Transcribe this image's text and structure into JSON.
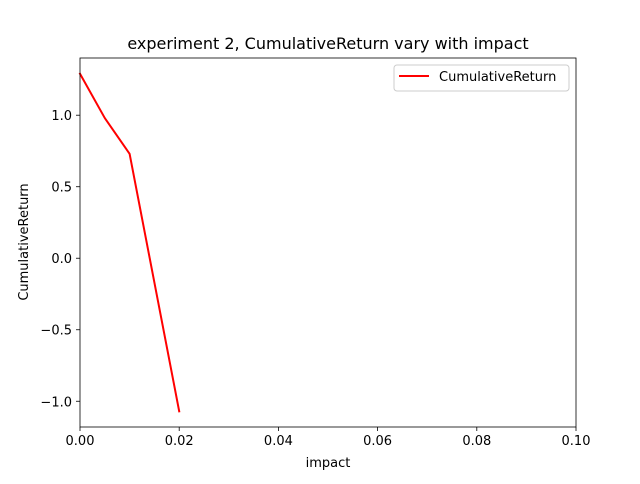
{
  "chart_data": {
    "type": "line",
    "title": "experiment 2, CumulativeReturn vary with impact",
    "xlabel": "impact",
    "ylabel": "CumulativeReturn",
    "xlim": [
      0.0,
      0.1
    ],
    "ylim": [
      -1.18,
      1.4
    ],
    "x_ticks": [
      0.0,
      0.02,
      0.04,
      0.06,
      0.08,
      0.1
    ],
    "x_tick_labels": [
      "0.00",
      "0.02",
      "0.04",
      "0.06",
      "0.08",
      "0.10"
    ],
    "y_ticks": [
      -1.0,
      -0.5,
      0.0,
      0.5,
      1.0
    ],
    "y_tick_labels": [
      "−1.0",
      "−0.5",
      "0.0",
      "0.5",
      "1.0"
    ],
    "grid": false,
    "legend_position": "top-right",
    "series": [
      {
        "name": "CumulativeReturn",
        "color": "#ff0000",
        "x": [
          0.0,
          0.005,
          0.01,
          0.02
        ],
        "y": [
          1.29,
          0.98,
          0.73,
          -1.07
        ]
      }
    ]
  }
}
